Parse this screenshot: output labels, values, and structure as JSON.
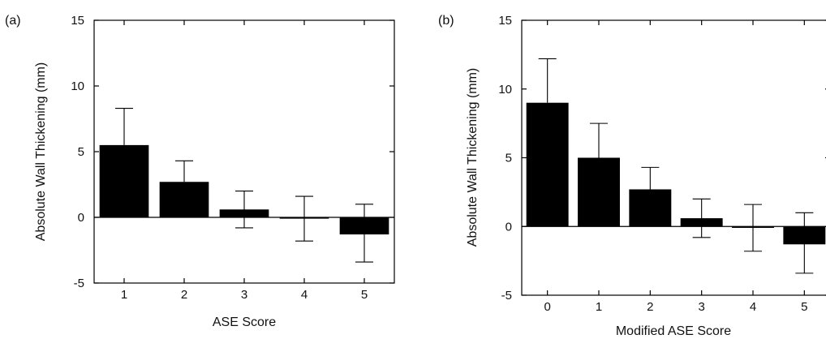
{
  "chart_data": [
    {
      "type": "bar",
      "panel_label": "(a)",
      "categories": [
        "1",
        "2",
        "3",
        "4",
        "5"
      ],
      "values": [
        5.5,
        2.7,
        0.6,
        -0.1,
        -1.3
      ],
      "error_up": [
        2.8,
        1.6,
        1.4,
        1.7,
        2.3
      ],
      "error_down": [
        0,
        0,
        1.4,
        1.7,
        2.1
      ],
      "xlabel": "ASE Score",
      "ylabel": "Absolute Wall Thickening (mm)",
      "ylim": [
        -5,
        15
      ],
      "yticks": [
        "-5",
        "0",
        "5",
        "10",
        "15"
      ],
      "bar_color": "#000000",
      "grid": false
    },
    {
      "type": "bar",
      "panel_label": "(b)",
      "categories": [
        "0",
        "1",
        "2",
        "3",
        "4",
        "5"
      ],
      "values": [
        9.0,
        5.0,
        2.7,
        0.6,
        -0.1,
        -1.3
      ],
      "error_up": [
        3.2,
        2.5,
        1.6,
        1.4,
        1.7,
        2.3
      ],
      "error_down": [
        0,
        0,
        0,
        1.4,
        1.7,
        2.1
      ],
      "xlabel": "Modified ASE Score",
      "ylabel": "Absolute Wall Thickening (mm)",
      "ylim": [
        -5,
        15
      ],
      "yticks": [
        "-5",
        "0",
        "5",
        "10",
        "15"
      ],
      "bar_color": "#000000",
      "grid": false
    }
  ]
}
